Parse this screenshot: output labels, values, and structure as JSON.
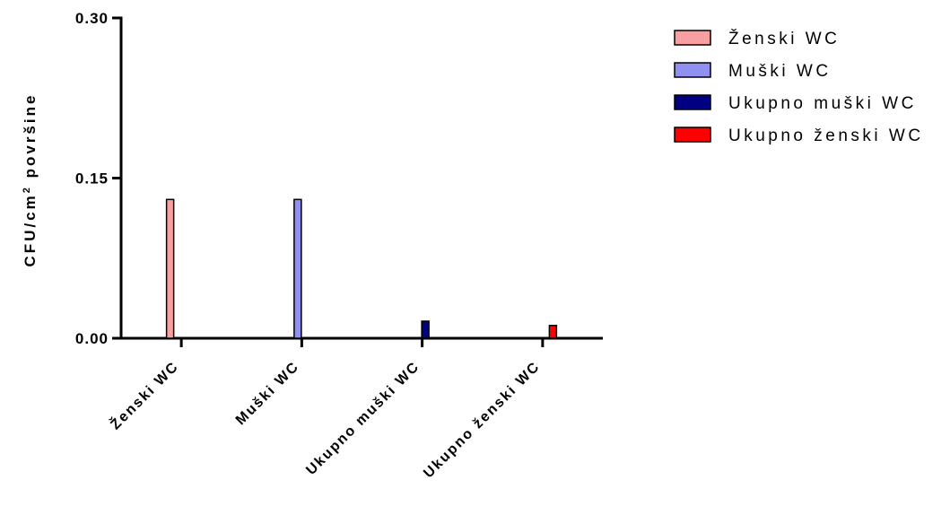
{
  "chart_data": {
    "type": "bar",
    "categories": [
      "Ženski WC",
      "Muški WC",
      "Ukupno muški WC",
      "Ukupno ženski WC"
    ],
    "series": [
      {
        "name": "Ženski WC",
        "color": "#f8a0a0",
        "values": [
          0.13,
          null,
          null,
          null
        ]
      },
      {
        "name": "Muški WC",
        "color": "#9090f0",
        "values": [
          null,
          0.13,
          null,
          null
        ]
      },
      {
        "name": "Ukupno muški WC",
        "color": "#000080",
        "values": [
          null,
          null,
          0.016,
          null
        ]
      },
      {
        "name": "Ukupno ženski WC",
        "color": "#ff0000",
        "values": [
          null,
          null,
          null,
          0.012
        ]
      }
    ],
    "ylabel": {
      "main": "CFU/cm",
      "sup": "2",
      "rest": " površine"
    },
    "xlabel": "",
    "ylim": [
      0,
      0.3
    ],
    "yticks": [
      "0.00",
      "0.15",
      "0.30"
    ],
    "grid": false,
    "legend_position": "top-right"
  }
}
